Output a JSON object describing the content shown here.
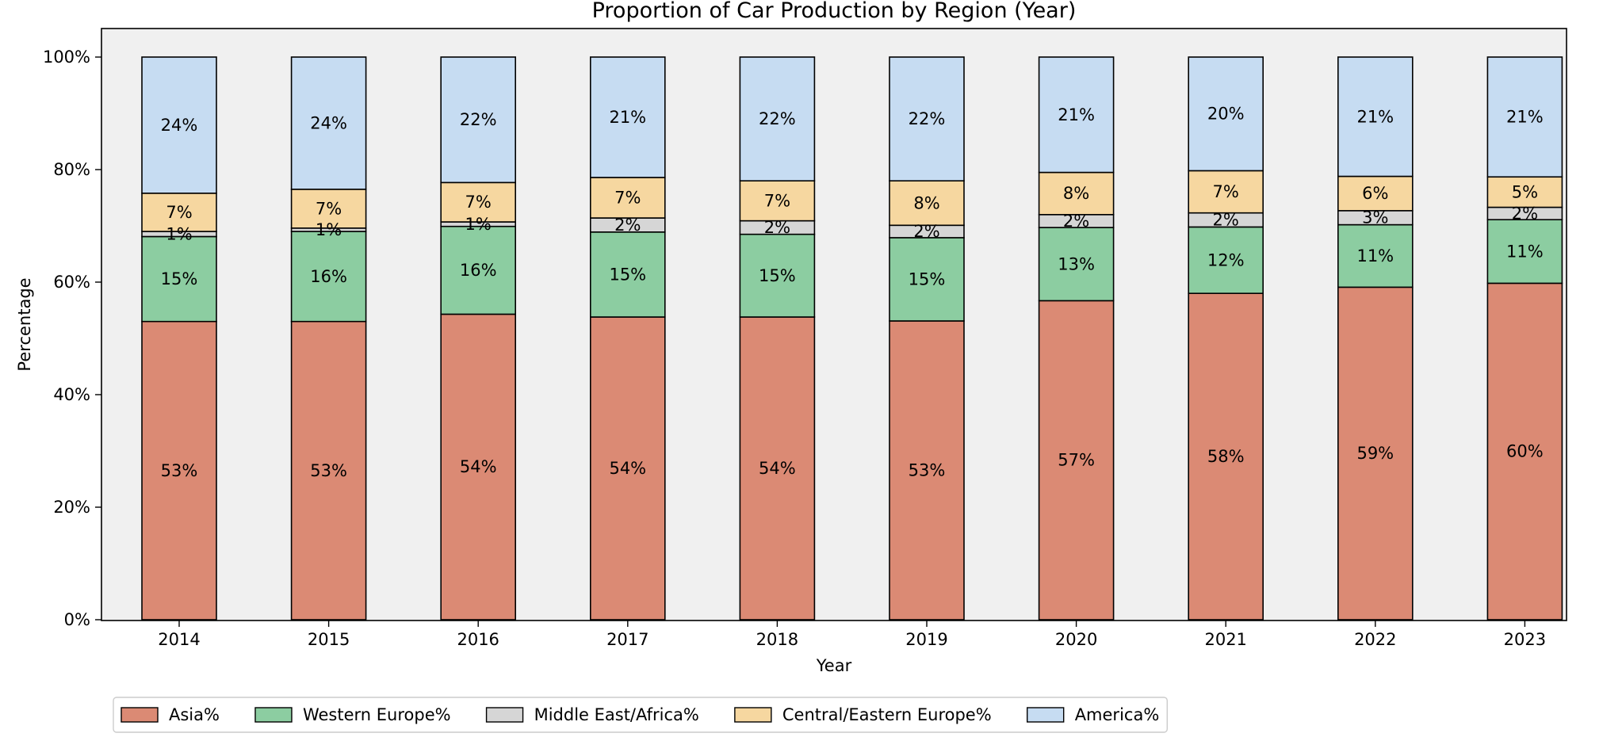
{
  "chart_data": {
    "type": "bar",
    "stacked": true,
    "normalized_percent": true,
    "title": "Proportion of Car Production by Region (Year)",
    "xlabel": "Year",
    "ylabel": "Percentage",
    "ylim": [
      0,
      100
    ],
    "yticks": [
      0,
      20,
      40,
      60,
      80,
      100
    ],
    "ytick_labels": [
      "0%",
      "20%",
      "40%",
      "60%",
      "80%",
      "100%"
    ],
    "grid": false,
    "legend_position": "bottom-left, below plot",
    "categories": [
      "2014",
      "2015",
      "2016",
      "2017",
      "2018",
      "2019",
      "2020",
      "2021",
      "2022",
      "2023"
    ],
    "series": [
      {
        "name": "Asia%",
        "color": "#db8a74",
        "values": [
          53.0,
          53.0,
          54.3,
          53.8,
          53.8,
          53.1,
          56.7,
          58.0,
          59.1,
          59.8
        ],
        "labels": [
          "53%",
          "53%",
          "54%",
          "54%",
          "54%",
          "53%",
          "57%",
          "58%",
          "59%",
          "60%"
        ]
      },
      {
        "name": "Western Europe%",
        "color": "#8ccda1",
        "values": [
          15.1,
          16.0,
          15.6,
          15.1,
          14.7,
          14.8,
          13.0,
          11.8,
          11.1,
          11.3
        ],
        "labels": [
          "15%",
          "16%",
          "16%",
          "15%",
          "15%",
          "15%",
          "13%",
          "12%",
          "11%",
          "11%"
        ]
      },
      {
        "name": "Middle East/Africa%",
        "color": "#d6d6d6",
        "values": [
          0.9,
          0.6,
          0.8,
          2.5,
          2.4,
          2.2,
          2.3,
          2.5,
          2.5,
          2.2
        ],
        "labels": [
          "1%",
          "1%",
          "1%",
          "2%",
          "2%",
          "2%",
          "2%",
          "2%",
          "3%",
          "2%"
        ]
      },
      {
        "name": "Central/Eastern Europe%",
        "color": "#f6d7a0",
        "values": [
          6.8,
          6.9,
          7.0,
          7.2,
          7.1,
          7.9,
          7.5,
          7.5,
          6.1,
          5.4
        ],
        "labels": [
          "7%",
          "7%",
          "7%",
          "7%",
          "7%",
          "8%",
          "8%",
          "7%",
          "6%",
          "5%"
        ]
      },
      {
        "name": "America%",
        "color": "#c6dcf2",
        "values": [
          24.2,
          23.5,
          22.3,
          21.4,
          22.0,
          22.0,
          20.5,
          20.2,
          21.2,
          21.3
        ],
        "labels": [
          "24%",
          "24%",
          "22%",
          "21%",
          "22%",
          "22%",
          "21%",
          "20%",
          "21%",
          "21%"
        ]
      }
    ]
  },
  "style": {
    "plot_background": "#f0f0f0",
    "axes_edge": "#000000",
    "bar_edge": "#000000"
  }
}
